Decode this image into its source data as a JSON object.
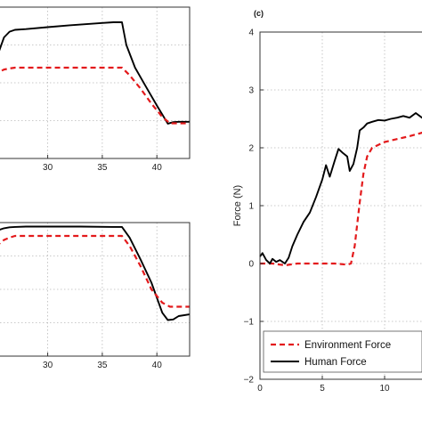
{
  "chart_data": [
    {
      "type": "line",
      "panel": "top-left",
      "xlim": [
        24,
        43
      ],
      "ylim": [
        0,
        4
      ],
      "xticks": [
        30,
        35,
        40
      ],
      "yticks": [],
      "grid": true,
      "series": [
        {
          "style": "solid",
          "color": "#000000",
          "x": [
            24,
            24.5,
            25,
            25.5,
            26,
            26.5,
            27,
            28,
            30,
            32,
            34,
            35,
            36,
            36.8,
            37.2,
            38,
            39,
            40,
            41,
            41.5,
            42,
            43
          ],
          "y": [
            1.9,
            2.1,
            2.4,
            2.8,
            3.2,
            3.35,
            3.4,
            3.42,
            3.47,
            3.52,
            3.56,
            3.58,
            3.6,
            3.6,
            3.0,
            2.4,
            1.9,
            1.4,
            0.92,
            0.96,
            0.97,
            0.97
          ]
        },
        {
          "style": "dashed",
          "color": "#e31a1c",
          "x": [
            24,
            24.5,
            25,
            25.5,
            26,
            26.5,
            27,
            30,
            35,
            36.8,
            37.5,
            38.5,
            39.5,
            40.5,
            41.2,
            42,
            43
          ],
          "y": [
            1.85,
            2.0,
            2.15,
            2.28,
            2.35,
            2.38,
            2.4,
            2.4,
            2.4,
            2.4,
            2.2,
            1.85,
            1.45,
            1.1,
            0.93,
            0.93,
            0.93
          ]
        }
      ]
    },
    {
      "type": "line",
      "panel": "bottom-left",
      "xlim": [
        24,
        43
      ],
      "ylim": [
        0,
        4
      ],
      "xticks": [
        30,
        35,
        40
      ],
      "yticks": [],
      "grid": true,
      "series": [
        {
          "style": "solid",
          "color": "#000000",
          "x": [
            24,
            25,
            26,
            26.5,
            27,
            28,
            30,
            33,
            36,
            36.8,
            37.5,
            38.5,
            39.5,
            40.5,
            41,
            41.5,
            42,
            43
          ],
          "y": [
            3.55,
            3.72,
            3.83,
            3.86,
            3.87,
            3.88,
            3.88,
            3.88,
            3.87,
            3.87,
            3.55,
            2.9,
            2.2,
            1.3,
            1.08,
            1.1,
            1.2,
            1.25
          ]
        },
        {
          "style": "dashed",
          "color": "#e31a1c",
          "x": [
            24,
            24.5,
            25,
            25.5,
            26,
            26.5,
            27,
            30,
            33,
            36.8,
            37.5,
            38.5,
            39.5,
            40.5,
            41.2,
            42,
            43
          ],
          "y": [
            2.6,
            2.9,
            3.15,
            3.35,
            3.48,
            3.55,
            3.6,
            3.6,
            3.6,
            3.6,
            3.3,
            2.7,
            2.0,
            1.6,
            1.48,
            1.48,
            1.48
          ]
        }
      ]
    },
    {
      "type": "line",
      "panel": "right",
      "panel_label": "(c)",
      "xlim": [
        0,
        14
      ],
      "ylim": [
        -2,
        4
      ],
      "xticks": [
        0,
        5,
        10
      ],
      "yticks": [
        -2,
        -1,
        0,
        1,
        2,
        3,
        4
      ],
      "ylabel": "Force (N)",
      "grid": true,
      "legend": "bottom-left",
      "series": [
        {
          "name": "Environment Force",
          "style": "dashed",
          "color": "#e31a1c",
          "x": [
            0,
            1,
            2,
            3,
            4,
            5,
            6,
            7,
            7.3,
            7.6,
            8,
            8.3,
            8.6,
            9,
            10,
            11,
            12,
            13,
            13.5,
            14
          ],
          "y": [
            0,
            0,
            -0.03,
            0,
            0,
            0,
            0,
            -0.02,
            0,
            0.3,
            1.05,
            1.55,
            1.85,
            2.0,
            2.1,
            2.15,
            2.2,
            2.26,
            2.3,
            2.35
          ]
        },
        {
          "name": "Human Force",
          "style": "solid",
          "color": "#000000",
          "x": [
            0,
            0.2,
            0.5,
            0.8,
            1,
            1.3,
            1.6,
            2,
            2.3,
            2.6,
            3,
            3.5,
            4,
            4.5,
            5,
            5.3,
            5.6,
            6,
            6.3,
            6.6,
            7,
            7.2,
            7.5,
            7.8,
            8,
            8.3,
            8.6,
            9,
            9.5,
            10,
            10.5,
            11,
            11.5,
            12,
            12.5,
            13,
            13.5,
            14
          ],
          "y": [
            0.12,
            0.18,
            0.06,
            0.0,
            0.08,
            0.03,
            0.06,
            0.0,
            0.1,
            0.3,
            0.5,
            0.72,
            0.88,
            1.15,
            1.45,
            1.7,
            1.5,
            1.78,
            1.98,
            1.92,
            1.85,
            1.6,
            1.72,
            2.0,
            2.3,
            2.35,
            2.42,
            2.45,
            2.48,
            2.47,
            2.5,
            2.52,
            2.55,
            2.52,
            2.6,
            2.52,
            2.58,
            2.52
          ]
        }
      ]
    }
  ]
}
